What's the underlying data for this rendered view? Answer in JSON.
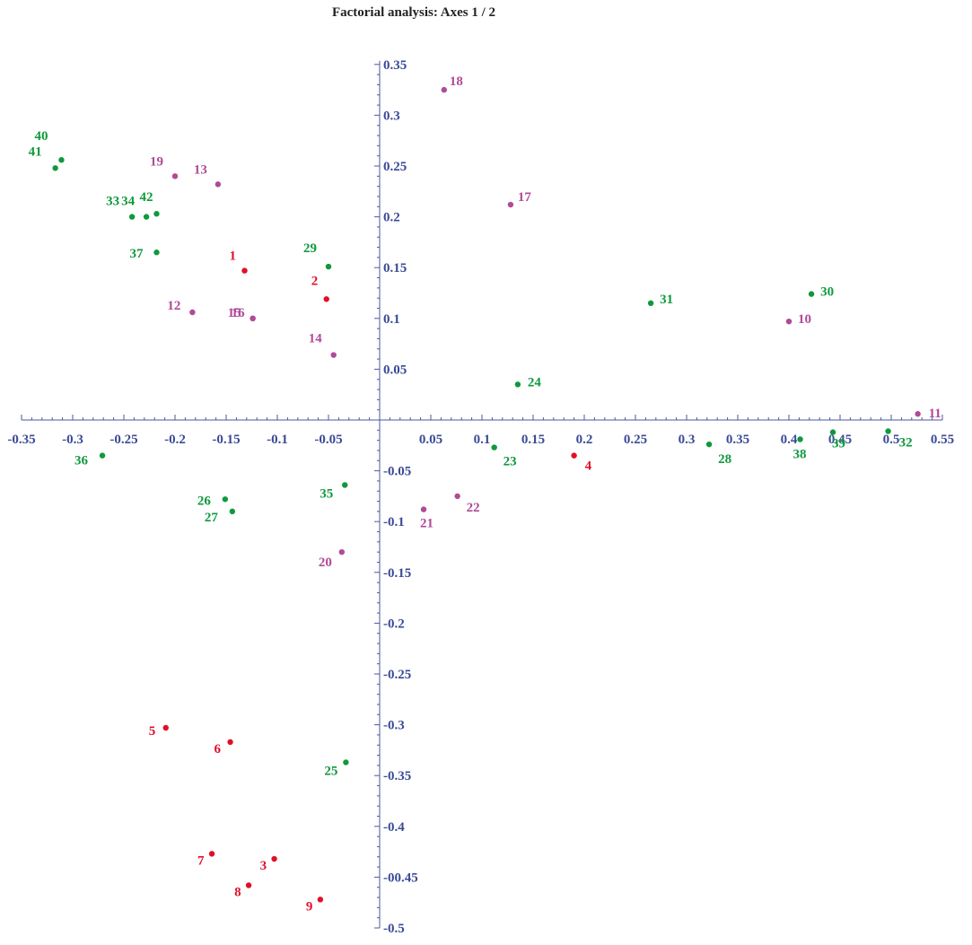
{
  "chart_data": {
    "type": "scatter",
    "title": "Factorial analysis: Axes 1 / 2",
    "xlabel": "",
    "ylabel": "",
    "xlim": [
      -0.35,
      0.55
    ],
    "ylim": [
      -0.5,
      0.35
    ],
    "grid": false,
    "x_ticks": [
      "-0.35",
      "-0.3",
      "-0.25",
      "-0.2",
      "-0.15",
      "-0.1",
      "-0.05",
      "0.05",
      "0.1",
      "0.15",
      "0.2",
      "0.25",
      "0.3",
      "0.35",
      "0.4",
      "0.45",
      "0.5",
      "0.55"
    ],
    "y_ticks": [
      "0.35",
      "0.3",
      "0.25",
      "0.2",
      "0.15",
      "0.1",
      "0.05",
      "-0.05",
      "-0.1",
      "-0.15",
      "-0.2",
      "-0.25",
      "-0.3",
      "-0.35",
      "-0.4",
      "-00.45",
      "-0.5"
    ],
    "colors": {
      "red": "#e0102a",
      "purple": "#b04a98",
      "green": "#0e9a3c",
      "axis": "#4a5aa0",
      "axis_text": "#3a4a96"
    },
    "points": [
      {
        "label": "1",
        "x": -0.132,
        "y": 0.147,
        "color": "red"
      },
      {
        "label": "2",
        "x": -0.052,
        "y": 0.119,
        "color": "red"
      },
      {
        "label": "3",
        "x": -0.103,
        "y": -0.432,
        "color": "red"
      },
      {
        "label": "4",
        "x": 0.19,
        "y": -0.035,
        "color": "red"
      },
      {
        "label": "5",
        "x": -0.209,
        "y": -0.303,
        "color": "red"
      },
      {
        "label": "6",
        "x": -0.146,
        "y": -0.317,
        "color": "red"
      },
      {
        "label": "7",
        "x": -0.164,
        "y": -0.427,
        "color": "red"
      },
      {
        "label": "8",
        "x": -0.128,
        "y": -0.458,
        "color": "red"
      },
      {
        "label": "9",
        "x": -0.058,
        "y": -0.472,
        "color": "red"
      },
      {
        "label": "10",
        "x": 0.4,
        "y": 0.097,
        "color": "purple"
      },
      {
        "label": "11",
        "x": 0.526,
        "y": 0.006,
        "color": "purple"
      },
      {
        "label": "12",
        "x": -0.183,
        "y": 0.106,
        "color": "purple"
      },
      {
        "label": "13",
        "x": -0.158,
        "y": 0.232,
        "color": "purple"
      },
      {
        "label": "14",
        "x": -0.045,
        "y": 0.064,
        "color": "purple"
      },
      {
        "label": "15",
        "x": -0.124,
        "y": 0.1,
        "color": "purple"
      },
      {
        "label": "16",
        "x": -0.124,
        "y": 0.1,
        "color": "purple"
      },
      {
        "label": "17",
        "x": 0.128,
        "y": 0.212,
        "color": "purple"
      },
      {
        "label": "18",
        "x": 0.063,
        "y": 0.325,
        "color": "purple"
      },
      {
        "label": "19",
        "x": -0.2,
        "y": 0.24,
        "color": "purple"
      },
      {
        "label": "20",
        "x": -0.037,
        "y": -0.13,
        "color": "purple"
      },
      {
        "label": "21",
        "x": 0.043,
        "y": -0.088,
        "color": "purple"
      },
      {
        "label": "22",
        "x": 0.076,
        "y": -0.075,
        "color": "purple"
      },
      {
        "label": "23",
        "x": 0.112,
        "y": -0.027,
        "color": "green"
      },
      {
        "label": "24",
        "x": 0.135,
        "y": 0.035,
        "color": "green"
      },
      {
        "label": "25",
        "x": -0.033,
        "y": -0.337,
        "color": "green"
      },
      {
        "label": "26",
        "x": -0.151,
        "y": -0.078,
        "color": "green"
      },
      {
        "label": "27",
        "x": -0.144,
        "y": -0.09,
        "color": "green"
      },
      {
        "label": "28",
        "x": 0.322,
        "y": -0.024,
        "color": "green"
      },
      {
        "label": "29",
        "x": -0.05,
        "y": 0.151,
        "color": "green"
      },
      {
        "label": "30",
        "x": 0.422,
        "y": 0.124,
        "color": "green"
      },
      {
        "label": "31",
        "x": 0.265,
        "y": 0.115,
        "color": "green"
      },
      {
        "label": "32",
        "x": 0.497,
        "y": -0.011,
        "color": "green"
      },
      {
        "label": "33",
        "x": -0.242,
        "y": 0.2,
        "color": "green"
      },
      {
        "label": "34",
        "x": -0.228,
        "y": 0.2,
        "color": "green"
      },
      {
        "label": "35",
        "x": -0.034,
        "y": -0.064,
        "color": "green"
      },
      {
        "label": "36",
        "x": -0.271,
        "y": -0.035,
        "color": "green"
      },
      {
        "label": "37",
        "x": -0.218,
        "y": 0.165,
        "color": "green"
      },
      {
        "label": "38",
        "x": 0.411,
        "y": -0.019,
        "color": "green"
      },
      {
        "label": "39",
        "x": 0.443,
        "y": -0.012,
        "color": "green"
      },
      {
        "label": "40",
        "x": -0.311,
        "y": 0.256,
        "color": "green"
      },
      {
        "label": "41",
        "x": -0.317,
        "y": 0.248,
        "color": "green"
      },
      {
        "label": "42",
        "x": -0.218,
        "y": 0.203,
        "color": "green"
      }
    ]
  }
}
